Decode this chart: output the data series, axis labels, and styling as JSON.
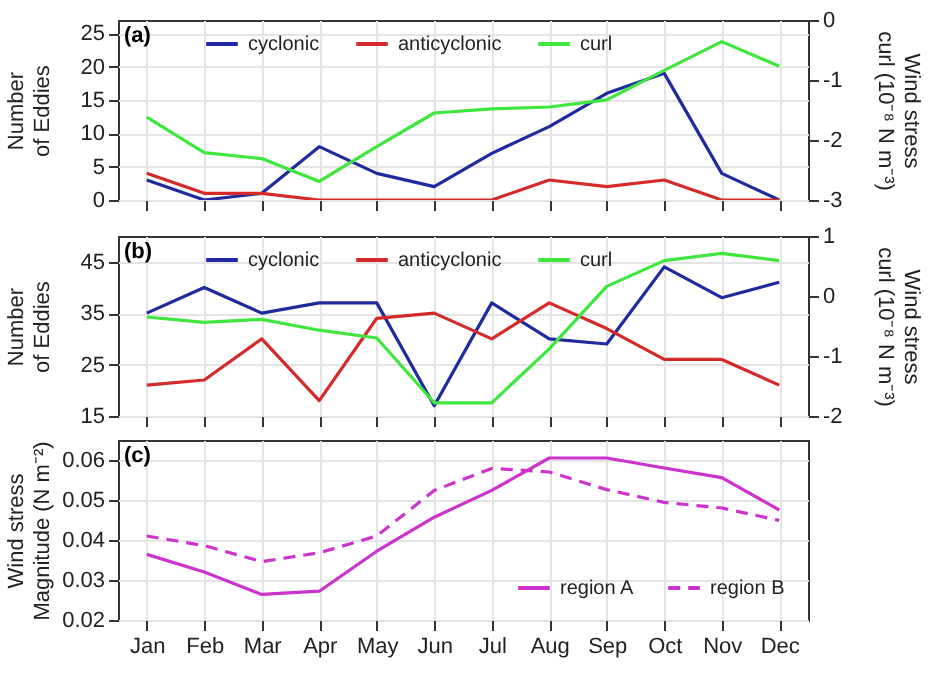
{
  "chart_data": [
    {
      "type": "line",
      "annotations": [
        "(a)"
      ],
      "ylabel": "Number of Eddies",
      "y2label": "Wind stress curl (10⁻⁸ N m⁻³)",
      "categories": [
        null,
        null,
        null,
        null,
        null,
        null,
        null,
        null,
        null,
        null,
        null,
        null
      ],
      "ylim": [
        0,
        27
      ],
      "yticks": [
        0,
        5,
        10,
        15,
        20,
        25
      ],
      "y2lim": [
        -3,
        0
      ],
      "y2ticks": [
        -3,
        -2,
        -1,
        0
      ],
      "tick_labels": "y",
      "grid": true,
      "legend": "top",
      "series": [
        {
          "name": "cyclonic",
          "color": "#1f2a9e",
          "values": [
            3,
            0,
            1,
            8,
            4,
            2,
            7,
            11,
            16,
            19,
            4,
            0
          ]
        },
        {
          "name": "anticyclonic",
          "color": "#d42a2a",
          "values": [
            4,
            1,
            1,
            0,
            0,
            0,
            0,
            3,
            2,
            3,
            0,
            0
          ]
        },
        {
          "name": "curl",
          "color": "#3ee63e",
          "axis": "y2",
          "values": [
            -1.62,
            -2.21,
            -2.31,
            -2.69,
            -2.11,
            -1.55,
            -1.48,
            -1.45,
            -1.33,
            -0.84,
            -0.36,
            -0.77
          ]
        }
      ]
    },
    {
      "type": "line",
      "annotations": [
        "(b)"
      ],
      "ylabel": "Number of Eddies",
      "y2label": "Wind stress curl (10⁻⁸ N m⁻³)",
      "categories": [
        null,
        null,
        null,
        null,
        null,
        null,
        null,
        null,
        null,
        null,
        null,
        null
      ],
      "ylim": [
        15,
        50
      ],
      "yticks": [
        15,
        25,
        35,
        45
      ],
      "y2lim": [
        -2,
        1
      ],
      "y2ticks": [
        -2,
        -1,
        0,
        1
      ],
      "tick_labels": "y",
      "grid": true,
      "legend": "top",
      "series": [
        {
          "name": "cyclonic",
          "color": "#1f2a9e",
          "values": [
            35,
            40,
            35,
            37,
            37,
            17,
            37,
            30,
            29,
            44,
            38,
            41
          ]
        },
        {
          "name": "anticyclonic",
          "color": "#d42a2a",
          "values": [
            21,
            22,
            30,
            18,
            34,
            35,
            30,
            37,
            32,
            26,
            26,
            21
          ]
        },
        {
          "name": "curl",
          "color": "#3ee63e",
          "axis": "y2",
          "values": [
            -0.35,
            -0.44,
            -0.39,
            -0.57,
            -0.7,
            -1.78,
            -1.78,
            -0.88,
            0.16,
            0.59,
            0.71,
            0.59
          ]
        }
      ]
    },
    {
      "type": "line",
      "annotations": [
        "(c)"
      ],
      "ylabel": "Wind stress Magnitude (N m⁻²)",
      "categories": [
        "Jan",
        "Feb",
        "Mar",
        "Apr",
        "May",
        "Jun",
        "Jul",
        "Aug",
        "Sep",
        "Oct",
        "Nov",
        "Dec"
      ],
      "ylim": [
        0.02,
        0.065
      ],
      "yticks": [
        0.02,
        0.03,
        0.04,
        0.05,
        0.06
      ],
      "grid": true,
      "legend": "bottom right",
      "series": [
        {
          "name": "region A",
          "color": "#cc33cc",
          "values": [
            0.0364,
            0.032,
            0.0264,
            0.0272,
            0.0372,
            0.0457,
            0.0524,
            0.0605,
            0.0605,
            0.058,
            0.0556,
            0.0475
          ]
        },
        {
          "name": "region B",
          "color": "#cc33cc",
          "line_style": "dashed",
          "values": [
            0.041,
            0.0386,
            0.0346,
            0.0368,
            0.041,
            0.0524,
            0.0579,
            0.057,
            0.0526,
            0.0494,
            0.048,
            0.0449
          ]
        }
      ]
    }
  ]
}
